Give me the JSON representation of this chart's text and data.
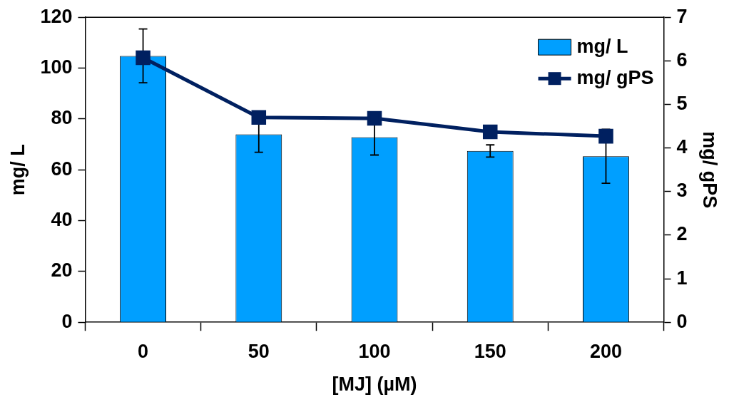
{
  "chart_data": {
    "type": "bar",
    "categories": [
      "0",
      "50",
      "100",
      "150",
      "200"
    ],
    "xlabel": "[MJ] (µM)",
    "ylabel": "mg/ L",
    "y2label": "mg/ gPS",
    "ylim": [
      0,
      120
    ],
    "yticks": [
      0,
      20,
      40,
      60,
      80,
      100,
      120
    ],
    "y2lim": [
      0,
      7
    ],
    "y2ticks": [
      0,
      1,
      2,
      3,
      4,
      5,
      6,
      7
    ],
    "legend": "top right",
    "grid": false,
    "series": [
      {
        "name": "mg/ L",
        "color": "#009fff",
        "values": [
          104.8,
          73.9,
          72.8,
          67.4,
          65.3
        ],
        "errors": [
          10.6,
          7,
          7,
          2.4,
          10.6
        ]
      },
      {
        "name": "mg/ gPS",
        "type": "line",
        "axis": "y2",
        "color": "#002060",
        "marker": "square",
        "values": [
          6.07,
          4.7,
          4.68,
          4.37,
          4.27
        ]
      }
    ]
  }
}
